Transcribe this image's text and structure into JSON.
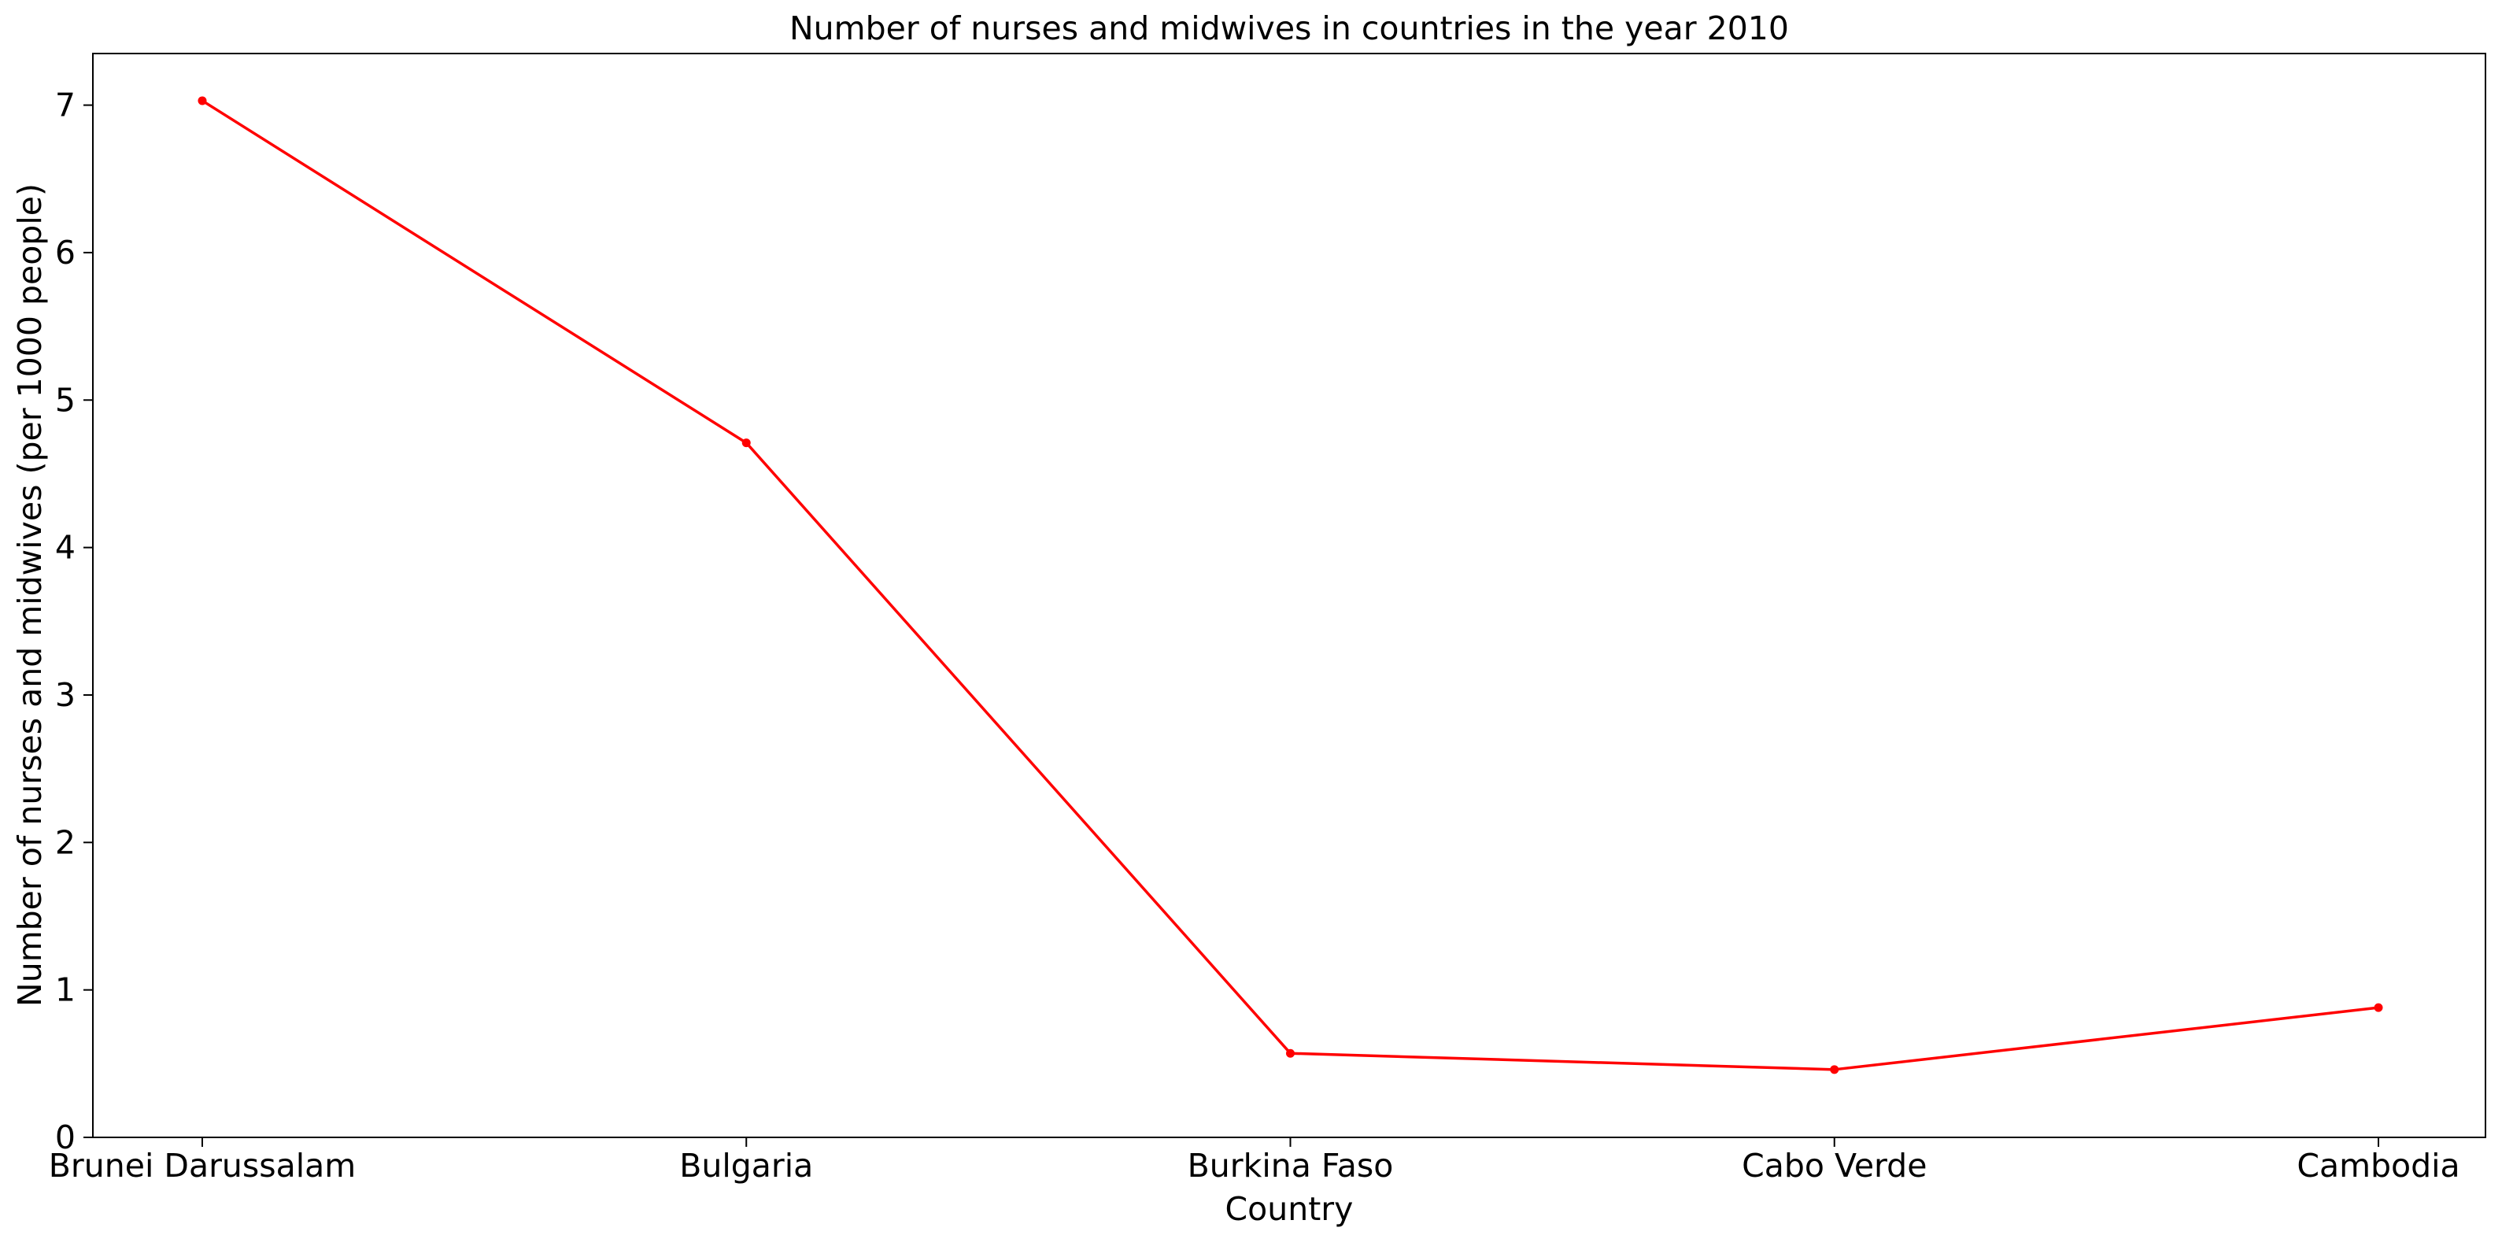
{
  "chart_data": {
    "type": "line",
    "title": "Number of nurses and midwives in countries in the year 2010",
    "xlabel": "Country",
    "ylabel": "Number of nurses and midwives (per 1000 people)",
    "categories": [
      "Brunei Darussalam",
      "Bulgaria",
      "Burkina Faso",
      "Cabo Verde",
      "Cambodia"
    ],
    "series": [
      {
        "values": [
          7.03,
          4.71,
          0.57,
          0.46,
          0.88
        ],
        "color": "#ff0000"
      }
    ],
    "ylim": [
      0,
      7.35
    ],
    "yticks": [
      "0",
      "1",
      "2",
      "3",
      "4",
      "5",
      "6",
      "7"
    ],
    "grid": false,
    "legend": "none"
  }
}
